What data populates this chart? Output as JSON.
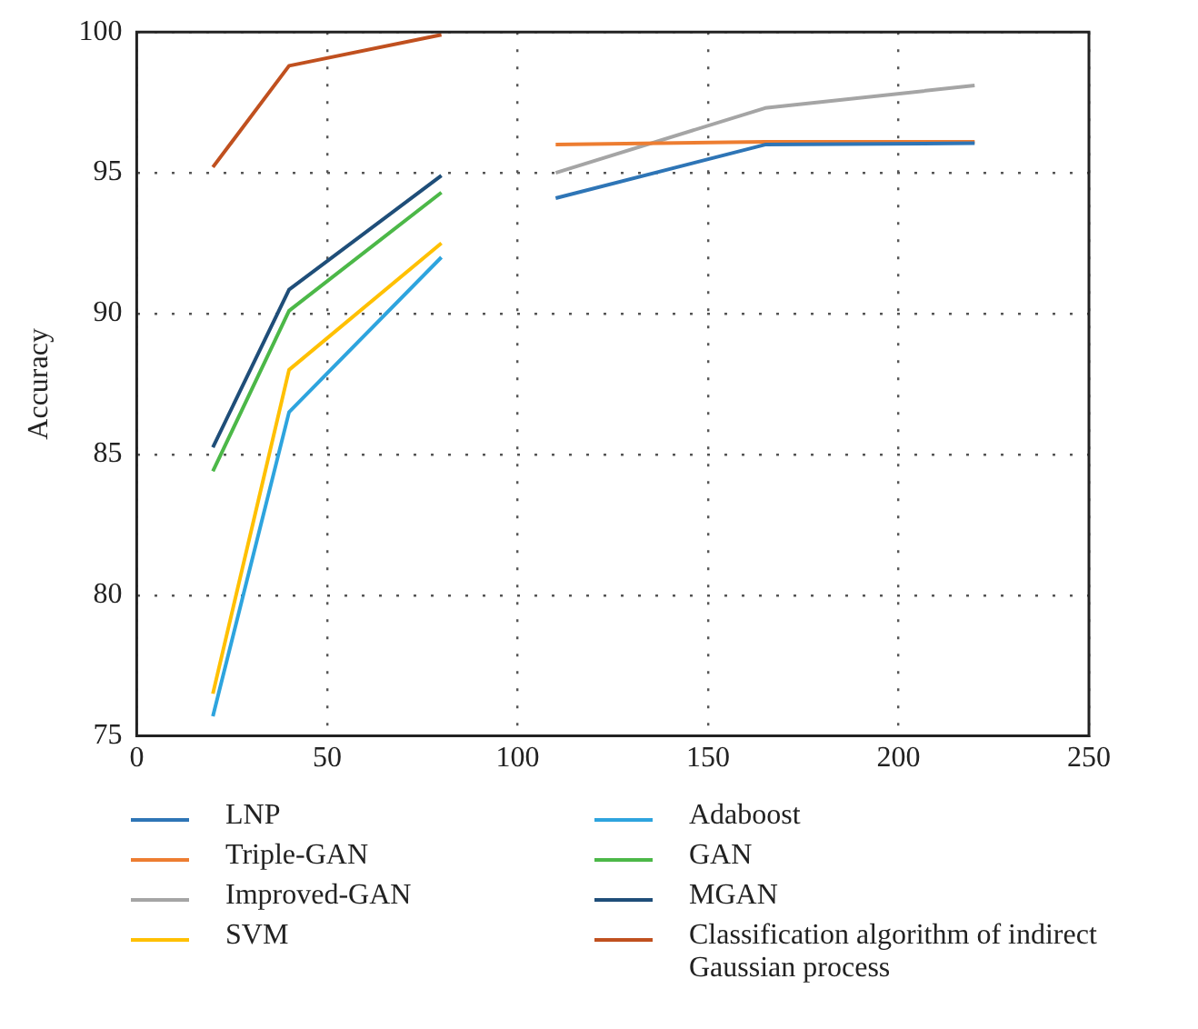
{
  "chart_data": {
    "type": "line",
    "ylabel": "Accuracy",
    "xlim": [
      0,
      250
    ],
    "xticks": [
      0,
      50,
      100,
      150,
      200,
      250
    ],
    "ylim": [
      75,
      100
    ],
    "yticks": [
      75,
      80,
      85,
      90,
      95,
      100
    ],
    "grid": true,
    "legend": "bottom",
    "marker": "none",
    "line_style": "solid",
    "series": [
      {
        "name": "LNP",
        "color": "#2e75b6",
        "x": [
          110,
          165,
          220
        ],
        "values": [
          94.1,
          96.0,
          96.05
        ]
      },
      {
        "name": "Triple-GAN",
        "color": "#ed7d31",
        "x": [
          110,
          165,
          220
        ],
        "values": [
          96.0,
          96.1,
          96.1
        ]
      },
      {
        "name": "Improved-GAN",
        "color": "#a5a5a5",
        "x": [
          110,
          165,
          220
        ],
        "values": [
          95.0,
          97.3,
          98.1
        ]
      },
      {
        "name": "SVM",
        "color": "#ffc000",
        "x": [
          20,
          40,
          80
        ],
        "values": [
          76.5,
          88.0,
          92.5
        ]
      },
      {
        "name": "Adaboost",
        "color": "#2ea4de",
        "x": [
          20,
          40,
          80
        ],
        "values": [
          75.7,
          86.5,
          92.0
        ]
      },
      {
        "name": "GAN",
        "color": "#4cb848",
        "x": [
          20,
          40,
          80
        ],
        "values": [
          84.4,
          90.1,
          94.3
        ]
      },
      {
        "name": "MGAN",
        "color": "#1f4e79",
        "x": [
          20,
          40,
          80
        ],
        "values": [
          85.25,
          90.85,
          94.9
        ]
      },
      {
        "name": "Classification algorithm of indirect Gaussian process",
        "color": "#c0501f",
        "x": [
          20,
          40,
          80
        ],
        "values": [
          95.2,
          98.8,
          99.9
        ]
      }
    ]
  }
}
